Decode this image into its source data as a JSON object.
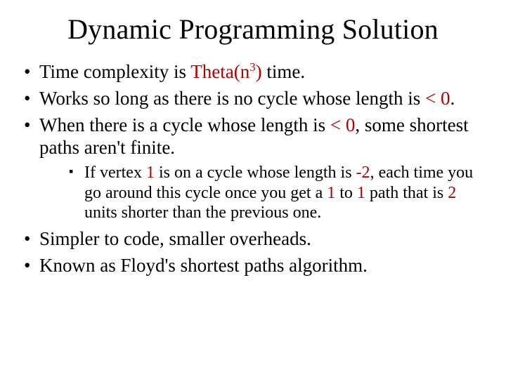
{
  "title": "Dynamic Programming Solution",
  "colors": {
    "text": "#000000",
    "accent": "#b00000",
    "background": "#ffffff"
  },
  "typography": {
    "family": "Times New Roman",
    "title_fontsize_pt": 30,
    "bullet_fontsize_pt": 20,
    "sub_bullet_fontsize_pt": 18
  },
  "bullets": [
    {
      "pre": "Time complexity is ",
      "hl_pre": "Theta(n",
      "hl_sup": "3",
      "hl_post": ")",
      "post": " time."
    },
    {
      "pre": "Works so long as there is no cycle whose length is ",
      "hl": "< 0",
      "post": "."
    },
    {
      "pre": "When there is a cycle whose length is ",
      "hl": "< 0",
      "post": ", some shortest paths aren't finite."
    },
    {
      "pre": "Simpler to code, smaller overheads."
    },
    {
      "pre": "Known as Floyd's shortest paths algorithm."
    }
  ],
  "sub": {
    "t0": "If vertex ",
    "r0": "1",
    "t1": " is on a cycle whose length is ",
    "r1": "-2",
    "t2": ", each time you go around this cycle once you get a ",
    "r2": "1",
    "t3": " to ",
    "r3": "1",
    "t4": " path that is ",
    "r4": "2",
    "t5": " units shorter than the previous one."
  }
}
